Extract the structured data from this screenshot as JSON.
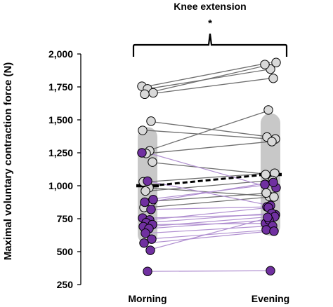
{
  "chart_data": {
    "type": "scatter",
    "title": "Knee extension",
    "significance_marker": "*",
    "ylabel": "Maximal voluntary contraction force (N)",
    "xlabel": "",
    "categories": [
      "Morning",
      "Evening"
    ],
    "ylim": [
      250,
      2000
    ],
    "yticks": [
      250,
      500,
      750,
      1000,
      1250,
      1500,
      1750,
      2000
    ],
    "ytick_labels": [
      "250",
      "500",
      "750",
      "1,000",
      "1,250",
      "1,500",
      "1,750",
      "2,000"
    ],
    "mean": {
      "morning": 1000,
      "evening": 1085
    },
    "sd_band": {
      "morning": [
        555,
        1445
      ],
      "evening": [
        620,
        1550
      ]
    },
    "grid": false,
    "legend": "none",
    "colors": {
      "grey_marker": "#d9d9d9",
      "grey_line": "#6f6f6f",
      "purple_marker": "#7030a0",
      "purple_line": "#b08fd0",
      "sd_band": "#c8c8c8",
      "mean_line": "#000000"
    },
    "series": [
      {
        "group": "grey",
        "values": [
          [
            1755,
            1935
          ],
          [
            1735,
            1885
          ],
          [
            1705,
            1920
          ],
          [
            1695,
            1815
          ],
          [
            1490,
            1370
          ],
          [
            1420,
            1355
          ],
          [
            1265,
            1575
          ],
          [
            1245,
            1335
          ],
          [
            1180,
            1085
          ],
          [
            1030,
            1095
          ],
          [
            985,
            920
          ],
          [
            960,
            1040
          ],
          [
            880,
            945
          ],
          [
            835,
            915
          ]
        ]
      },
      {
        "group": "purple",
        "values": [
          [
            1250,
            985
          ],
          [
            1035,
            850
          ],
          [
            895,
            1010
          ],
          [
            875,
            1025
          ],
          [
            820,
            840
          ],
          [
            755,
            780
          ],
          [
            740,
            835
          ],
          [
            720,
            790
          ],
          [
            705,
            715
          ],
          [
            690,
            765
          ],
          [
            675,
            740
          ],
          [
            640,
            695
          ],
          [
            595,
            665
          ],
          [
            565,
            655
          ],
          [
            510,
            760
          ],
          [
            350,
            355
          ]
        ]
      }
    ]
  }
}
